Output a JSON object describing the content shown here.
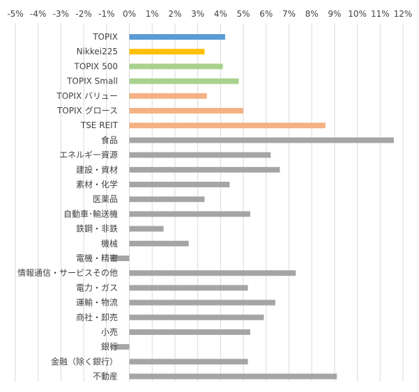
{
  "chart_data": {
    "type": "bar",
    "orientation": "horizontal",
    "title": "",
    "xlabel": "",
    "ylabel": "",
    "xlim": [
      -5,
      12
    ],
    "grid": true,
    "legend": "none",
    "x_ticks": [
      -5,
      -4,
      -3,
      -2,
      -1,
      0,
      1,
      2,
      3,
      4,
      5,
      6,
      7,
      8,
      9,
      10,
      11,
      12
    ],
    "x_tick_labels": [
      "-5%",
      "-4%",
      "-3%",
      "-2%",
      "-1%",
      "0%",
      "1%",
      "2%",
      "3%",
      "4%",
      "5%",
      "6%",
      "7%",
      "8%",
      "9%",
      "10%",
      "11%",
      "12%"
    ],
    "categories": [
      "TOPIX",
      "Nikkei225",
      "TOPIX 500",
      "TOPIX Small",
      "TOPIX バリュー",
      "TOPIX グロース",
      "TSE REIT",
      "食品",
      "エネルギー資源",
      "建設・資材",
      "素材・化学",
      "医薬品",
      "自動車･輸送機",
      "鉄鋼・非鉄",
      "機械",
      "電機・精密",
      "情報通信・サービスその他",
      "電力・ガス",
      "運輸・物流",
      "商社・卸売",
      "小売",
      "銀行",
      "金融（除く銀行）",
      "不動産"
    ],
    "values": [
      4.2,
      3.3,
      4.1,
      4.8,
      3.4,
      5.0,
      8.6,
      11.6,
      6.2,
      6.6,
      4.4,
      3.3,
      5.3,
      1.5,
      2.6,
      -0.8,
      7.3,
      5.2,
      6.4,
      5.9,
      5.3,
      -0.8,
      5.2,
      9.1
    ],
    "colors": [
      "#5b9bd5",
      "#ffc000",
      "#a9d18e",
      "#a9d18e",
      "#f4b183",
      "#f4b183",
      "#f4b183",
      "#a5a5a5",
      "#a5a5a5",
      "#a5a5a5",
      "#a5a5a5",
      "#a5a5a5",
      "#a5a5a5",
      "#a5a5a5",
      "#a5a5a5",
      "#a5a5a5",
      "#a5a5a5",
      "#a5a5a5",
      "#a5a5a5",
      "#a5a5a5",
      "#a5a5a5",
      "#a5a5a5",
      "#a5a5a5",
      "#a5a5a5"
    ]
  }
}
